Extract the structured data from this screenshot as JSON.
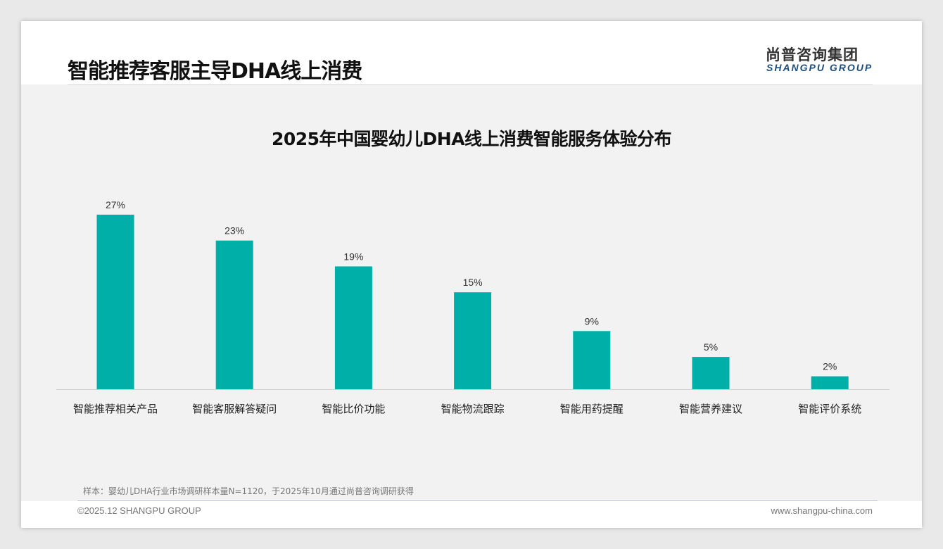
{
  "header": {
    "title": "智能推荐客服主导DHA线上消费",
    "logo_cn": "尚普咨询集团",
    "logo_en": "SHANGPU GROUP"
  },
  "footer": {
    "note": "样本：婴幼儿DHA行业市场调研样本量N=1120，于2025年10月通过尚普咨询调研获得",
    "copyright": "©2025.12 SHANGPU GROUP",
    "url": "www.shangpu-china.com"
  },
  "colors": {
    "bar": "#00b0a8"
  },
  "chart_data": {
    "type": "bar",
    "title": "2025年中国婴幼儿DHA线上消费智能服务体验分布",
    "categories": [
      "智能推荐相关产品",
      "智能客服解答疑问",
      "智能比价功能",
      "智能物流跟踪",
      "智能用药提醒",
      "智能营养建议",
      "智能评价系统"
    ],
    "values": [
      27,
      23,
      19,
      15,
      9,
      5,
      2
    ],
    "labels": [
      "27%",
      "23%",
      "19%",
      "15%",
      "9%",
      "5%",
      "2%"
    ],
    "xlabel": "",
    "ylabel": "",
    "ylim": [
      0,
      30
    ],
    "grid": false,
    "legend": "none"
  }
}
